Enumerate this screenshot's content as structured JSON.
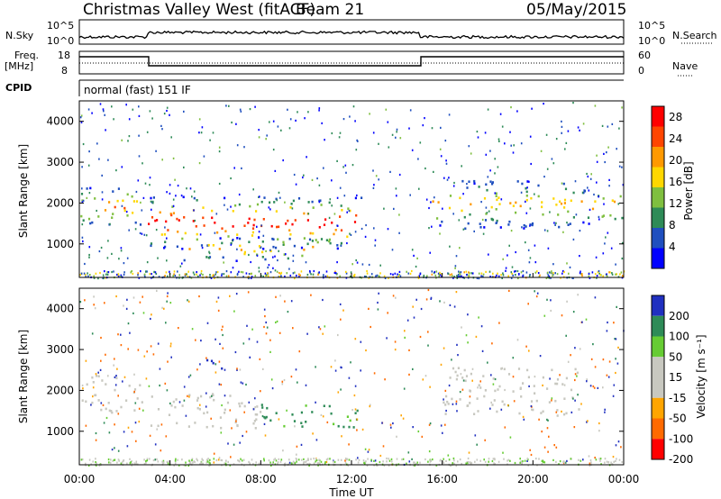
{
  "header": {
    "station": "Christmas Valley West (fitACF)",
    "beam": "Beam 21",
    "date": "05/May/2015"
  },
  "strips": {
    "nsky_label": "N.Sky",
    "nsky_ticks": [
      "10^5",
      "10^0"
    ],
    "nsearch_label": "N.Search",
    "nsearch_ticks": [
      "10^5",
      "10^0"
    ],
    "freq_label_1": "Freq.",
    "freq_label_2": "[MHz]",
    "freq_ticks": [
      "18",
      "8"
    ],
    "nave_label": "Nave",
    "nave_ticks": [
      "60",
      "0"
    ],
    "cpid_label": "CPID",
    "cpid_value": "normal (fast) 151 IF"
  },
  "colors": {
    "power": [
      "#0000ff",
      "#1f4fbf",
      "#2e8b57",
      "#7fbf3f",
      "#ffd700",
      "#ff9900",
      "#ff4500",
      "#ff0000"
    ],
    "velocity": [
      "#ff0000",
      "#ff6a00",
      "#ffa500",
      "#c8c8c0",
      "#c8c8c0",
      "#66cc33",
      "#2e8b57",
      "#2030c0"
    ]
  },
  "chart_data": [
    {
      "type": "heatmap",
      "panel": "power",
      "title": "",
      "xlabel": "",
      "ylabel": "Slant Range [km]",
      "xlim": [
        "00:00",
        "00:00"
      ],
      "x_ticks": [
        "00:00",
        "04:00",
        "08:00",
        "12:00",
        "16:00",
        "20:00",
        "00:00"
      ],
      "ylim": [
        180,
        4500
      ],
      "y_ticks": [
        1000,
        2000,
        3000,
        4000
      ],
      "colorbar": {
        "label": "Power [dB]",
        "ticks": [
          4,
          8,
          12,
          16,
          20,
          24,
          28
        ],
        "range": [
          0,
          30
        ]
      },
      "features": [
        {
          "t_start": 0.0,
          "t_end": 2.9,
          "range_low": 1450,
          "range_high": 2400,
          "peak_db": 22
        },
        {
          "t_start": 3.0,
          "t_end": 12.5,
          "range_low": 900,
          "range_high": 2200,
          "peak_db": 28
        },
        {
          "t_start": 4.5,
          "t_end": 10.5,
          "range_low": 600,
          "range_high": 1200,
          "peak_db": 20
        },
        {
          "t_start": 15.5,
          "t_end": 22.0,
          "range_low": 1400,
          "range_high": 2600,
          "peak_db": 18
        },
        {
          "t_start": 22.1,
          "t_end": 24.0,
          "range_low": 1500,
          "range_high": 2400,
          "peak_db": 22
        }
      ]
    },
    {
      "type": "heatmap",
      "panel": "velocity",
      "title": "",
      "xlabel": "Time UT",
      "ylabel": "Slant Range [km]",
      "xlim": [
        "00:00",
        "00:00"
      ],
      "x_ticks": [
        "00:00",
        "04:00",
        "08:00",
        "12:00",
        "16:00",
        "20:00",
        "00:00"
      ],
      "ylim": [
        180,
        4500
      ],
      "y_ticks": [
        1000,
        2000,
        3000,
        4000
      ],
      "colorbar": {
        "label": "Velocity [m s⁻¹]",
        "ticks": [
          200,
          100,
          50,
          15,
          -15,
          -50,
          -100,
          -200
        ],
        "range": [
          -250,
          250
        ]
      },
      "features": [
        {
          "t_start": 0.0,
          "t_end": 2.9,
          "range_low": 1450,
          "range_high": 2400,
          "velocity": 0
        },
        {
          "t_start": 3.0,
          "t_end": 8.0,
          "range_low": 1100,
          "range_high": 2000,
          "velocity": 0
        },
        {
          "t_start": 8.0,
          "t_end": 12.5,
          "range_low": 1100,
          "range_high": 1700,
          "velocity": 60
        },
        {
          "t_start": 5.5,
          "t_end": 6.3,
          "range_low": 2400,
          "range_high": 2900,
          "velocity": 200
        },
        {
          "t_start": 16.0,
          "t_end": 22.0,
          "range_low": 1400,
          "range_high": 2600,
          "velocity": 0
        }
      ]
    }
  ]
}
